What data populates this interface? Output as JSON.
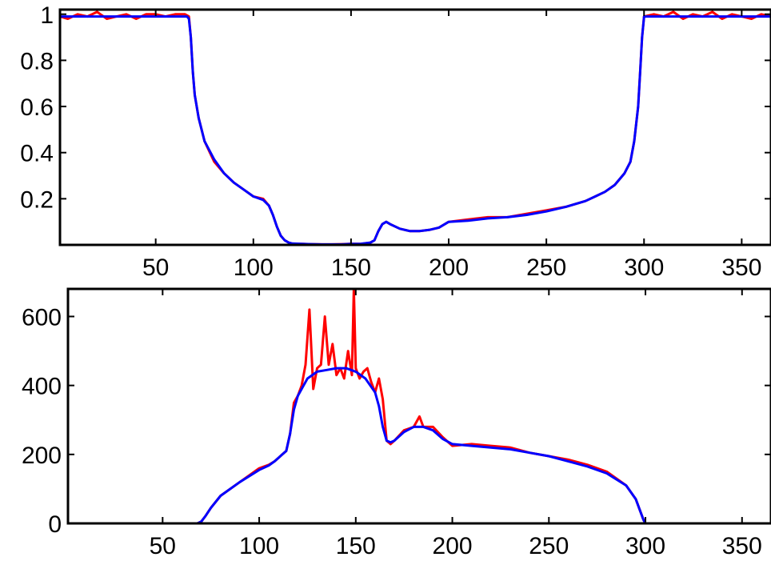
{
  "chart_data": [
    {
      "type": "line",
      "title": "",
      "xlabel": "",
      "ylabel": "",
      "xlim": [
        1,
        365
      ],
      "ylim": [
        0,
        1.02
      ],
      "xticks": [
        50,
        100,
        150,
        200,
        250,
        300,
        350
      ],
      "xtick_labels": [
        "50",
        "100",
        "150",
        "200",
        "250",
        "300",
        "350"
      ],
      "yticks": [
        0.2,
        0.4,
        0.6,
        0.8,
        1.0
      ],
      "ytick_labels": [
        "0.2",
        "0.4",
        "0.6",
        "0.8",
        "1"
      ],
      "grid": false,
      "colors": {
        "noisy": "#ff0000",
        "smooth": "#0000ff"
      },
      "series": [
        {
          "color": "#ff0000",
          "style": "noisy",
          "x": [
            1,
            5,
            10,
            15,
            20,
            25,
            30,
            35,
            40,
            45,
            50,
            55,
            60,
            65,
            67,
            68,
            69,
            70,
            72,
            75,
            80,
            85,
            90,
            95,
            100,
            105,
            108,
            110,
            112,
            114,
            116,
            118,
            120,
            125,
            130,
            135,
            140,
            145,
            150,
            155,
            160,
            162,
            164,
            166,
            168,
            170,
            175,
            180,
            185,
            190,
            195,
            200,
            210,
            220,
            230,
            240,
            250,
            260,
            270,
            275,
            280,
            285,
            290,
            293,
            295,
            297,
            298,
            299,
            300,
            305,
            310,
            315,
            320,
            325,
            330,
            335,
            340,
            345,
            350,
            355,
            360,
            365
          ],
          "y": [
            0.99,
            0.98,
            1.0,
            0.99,
            1.01,
            0.98,
            0.99,
            1.0,
            0.98,
            1.0,
            1.0,
            0.99,
            1.0,
            1.0,
            0.99,
            0.9,
            0.75,
            0.65,
            0.55,
            0.45,
            0.36,
            0.31,
            0.27,
            0.24,
            0.21,
            0.2,
            0.17,
            0.13,
            0.08,
            0.04,
            0.02,
            0.01,
            0.005,
            0.004,
            0.003,
            0.002,
            0.002,
            0.003,
            0.005,
            0.004,
            0.01,
            0.02,
            0.06,
            0.09,
            0.1,
            0.09,
            0.07,
            0.06,
            0.06,
            0.065,
            0.075,
            0.1,
            0.11,
            0.12,
            0.12,
            0.135,
            0.15,
            0.165,
            0.19,
            0.21,
            0.23,
            0.26,
            0.31,
            0.36,
            0.45,
            0.6,
            0.75,
            0.9,
            0.99,
            1.0,
            0.99,
            1.01,
            0.98,
            1.0,
            0.99,
            1.01,
            0.98,
            1.0,
            0.99,
            0.98,
            1.0,
            0.99
          ]
        },
        {
          "color": "#0000ff",
          "style": "smooth",
          "x": [
            1,
            10,
            20,
            30,
            40,
            50,
            60,
            66,
            67,
            68,
            69,
            70,
            72,
            75,
            80,
            85,
            90,
            95,
            100,
            105,
            108,
            110,
            112,
            114,
            116,
            118,
            120,
            125,
            130,
            135,
            140,
            145,
            150,
            155,
            160,
            162,
            164,
            166,
            168,
            170,
            175,
            180,
            185,
            190,
            195,
            200,
            210,
            220,
            230,
            240,
            250,
            260,
            270,
            275,
            280,
            285,
            290,
            293,
            295,
            297,
            298,
            299,
            300,
            310,
            320,
            330,
            340,
            350,
            360,
            365
          ],
          "y": [
            0.99,
            0.99,
            0.99,
            0.99,
            0.99,
            0.99,
            0.99,
            0.99,
            0.98,
            0.9,
            0.75,
            0.65,
            0.55,
            0.45,
            0.37,
            0.31,
            0.27,
            0.24,
            0.21,
            0.195,
            0.17,
            0.13,
            0.08,
            0.04,
            0.02,
            0.01,
            0.006,
            0.004,
            0.003,
            0.002,
            0.002,
            0.002,
            0.004,
            0.005,
            0.01,
            0.02,
            0.06,
            0.09,
            0.1,
            0.09,
            0.07,
            0.06,
            0.06,
            0.065,
            0.075,
            0.1,
            0.105,
            0.115,
            0.12,
            0.13,
            0.145,
            0.165,
            0.19,
            0.21,
            0.23,
            0.26,
            0.31,
            0.36,
            0.45,
            0.6,
            0.75,
            0.9,
            0.99,
            0.99,
            0.99,
            0.99,
            0.99,
            0.99,
            0.99,
            0.99
          ]
        }
      ]
    },
    {
      "type": "line",
      "title": "",
      "xlabel": "",
      "ylabel": "",
      "xlim": [
        1,
        365
      ],
      "ylim": [
        0,
        680
      ],
      "xticks": [
        50,
        100,
        150,
        200,
        250,
        300,
        350
      ],
      "xtick_labels": [
        "50",
        "100",
        "150",
        "200",
        "250",
        "300",
        "350"
      ],
      "yticks": [
        0,
        200,
        400,
        600
      ],
      "ytick_labels": [
        "0",
        "200",
        "400",
        "600"
      ],
      "grid": false,
      "colors": {
        "noisy": "#ff0000",
        "smooth": "#0000ff"
      },
      "series": [
        {
          "color": "#ff0000",
          "style": "noisy",
          "x": [
            1,
            20,
            40,
            60,
            66,
            68,
            70,
            72,
            75,
            80,
            90,
            100,
            105,
            108,
            110,
            112,
            114,
            116,
            118,
            120,
            122,
            124,
            126,
            128,
            130,
            132,
            134,
            136,
            138,
            140,
            142,
            144,
            146,
            148,
            149,
            150,
            152,
            154,
            156,
            158,
            160,
            162,
            164,
            166,
            168,
            170,
            175,
            180,
            183,
            185,
            190,
            195,
            200,
            210,
            220,
            230,
            240,
            250,
            260,
            270,
            280,
            290,
            295,
            297,
            299,
            300,
            310,
            320,
            330,
            340,
            350,
            360,
            365
          ],
          "y": [
            0,
            0,
            0,
            0,
            0,
            0,
            5,
            20,
            45,
            80,
            120,
            160,
            170,
            180,
            190,
            200,
            210,
            260,
            350,
            370,
            400,
            460,
            620,
            390,
            450,
            460,
            600,
            460,
            520,
            430,
            450,
            420,
            500,
            430,
            680,
            450,
            420,
            440,
            450,
            410,
            380,
            420,
            360,
            240,
            230,
            240,
            270,
            280,
            310,
            280,
            280,
            250,
            225,
            230,
            225,
            220,
            205,
            195,
            185,
            170,
            150,
            110,
            70,
            40,
            10,
            0,
            0,
            0,
            0,
            0,
            0,
            0,
            0
          ]
        },
        {
          "color": "#0000ff",
          "style": "smooth",
          "x": [
            1,
            20,
            40,
            60,
            66,
            68,
            70,
            72,
            75,
            80,
            90,
            100,
            105,
            108,
            110,
            112,
            114,
            116,
            118,
            120,
            125,
            130,
            135,
            140,
            145,
            150,
            155,
            160,
            162,
            164,
            166,
            168,
            170,
            175,
            180,
            185,
            190,
            195,
            200,
            210,
            220,
            230,
            240,
            250,
            260,
            270,
            280,
            290,
            295,
            297,
            299,
            300,
            310,
            320,
            330,
            340,
            350,
            360,
            365
          ],
          "y": [
            0,
            0,
            0,
            0,
            0,
            0,
            5,
            20,
            45,
            80,
            120,
            155,
            168,
            180,
            190,
            200,
            210,
            260,
            330,
            370,
            420,
            440,
            445,
            450,
            450,
            440,
            420,
            380,
            340,
            280,
            240,
            235,
            240,
            265,
            280,
            280,
            270,
            245,
            230,
            225,
            220,
            215,
            205,
            195,
            180,
            165,
            145,
            110,
            70,
            40,
            10,
            0,
            0,
            0,
            0,
            0,
            0,
            0,
            0
          ]
        }
      ]
    }
  ]
}
